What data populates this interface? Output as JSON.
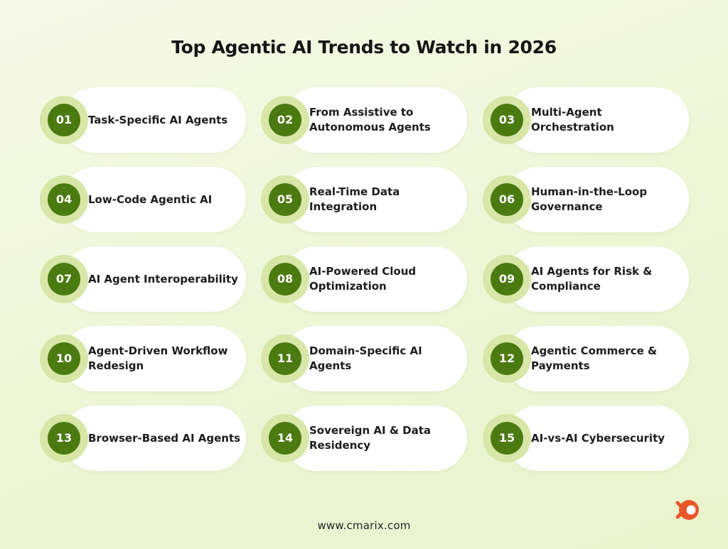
{
  "title": "Top Agentic AI Trends to Watch in 2026",
  "colors": {
    "accent": "#4a7a10",
    "halo": "#d8e6a8",
    "logo": "#e8572a"
  },
  "trends": [
    {
      "number": "01",
      "label": "Task-Specific AI Agents"
    },
    {
      "number": "02",
      "label": "From Assistive to Autonomous Agents"
    },
    {
      "number": "03",
      "label": "Multi-Agent Orchestration"
    },
    {
      "number": "04",
      "label": "Low-Code Agentic AI"
    },
    {
      "number": "05",
      "label": "Real-Time Data Integration"
    },
    {
      "number": "06",
      "label": "Human-in-the-Loop Governance"
    },
    {
      "number": "07",
      "label": "AI Agent Interoperability"
    },
    {
      "number": "08",
      "label": "AI-Powered Cloud Optimization"
    },
    {
      "number": "09",
      "label": "AI Agents for Risk & Compliance"
    },
    {
      "number": "10",
      "label": "Agent-Driven Workflow Redesign"
    },
    {
      "number": "11",
      "label": "Domain-Specific AI Agents"
    },
    {
      "number": "12",
      "label": "Agentic Commerce & Payments"
    },
    {
      "number": "13",
      "label": "Browser-Based AI Agents"
    },
    {
      "number": "14",
      "label": "Sovereign AI & Data Residency"
    },
    {
      "number": "15",
      "label": "AI-vs-AI Cybersecurity"
    }
  ],
  "footer": {
    "website": "www.cmarix.com"
  },
  "logo": {
    "icon": "cmarix-logo-icon"
  }
}
